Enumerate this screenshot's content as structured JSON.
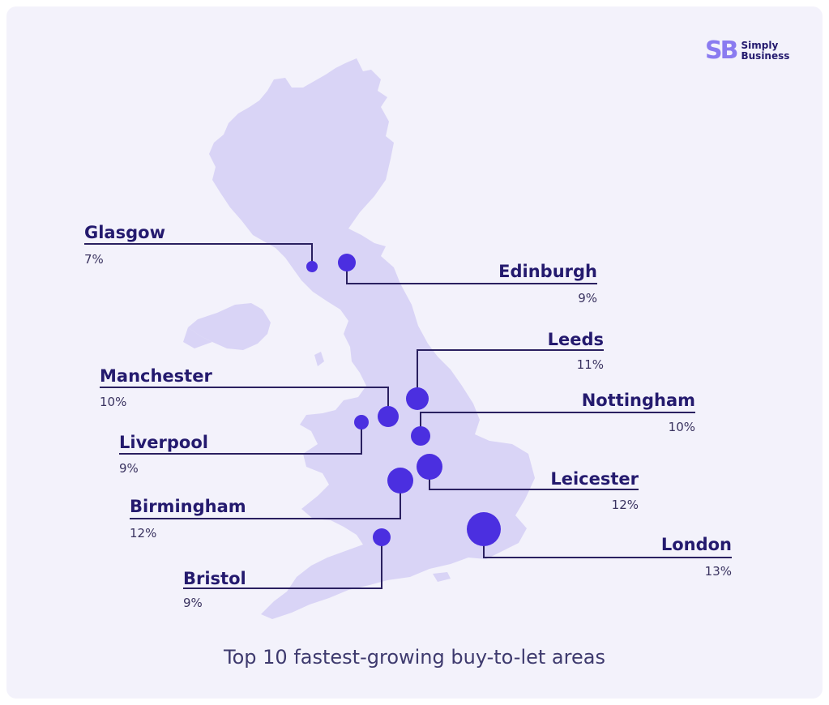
{
  "brand": {
    "mark": "SB",
    "name_line1": "Simply",
    "name_line2": "Business",
    "mark_color": "#8a7bf0",
    "text_color": "#241a6e"
  },
  "caption": "Top 10 fastest-growing buy-to-let areas",
  "colors": {
    "land": "#d9d4f6",
    "marker": "#4b2fe0",
    "leader": "#2a2060",
    "label": "#241a6e"
  },
  "cities": [
    {
      "name": "Glasgow",
      "value": "7%"
    },
    {
      "name": "Edinburgh",
      "value": "9%"
    },
    {
      "name": "Leeds",
      "value": "11%"
    },
    {
      "name": "Manchester",
      "value": "10%"
    },
    {
      "name": "Nottingham",
      "value": "10%"
    },
    {
      "name": "Liverpool",
      "value": "9%"
    },
    {
      "name": "Leicester",
      "value": "12%"
    },
    {
      "name": "Birmingham",
      "value": "12%"
    },
    {
      "name": "London",
      "value": "13%"
    },
    {
      "name": "Bristol",
      "value": "9%"
    }
  ]
}
